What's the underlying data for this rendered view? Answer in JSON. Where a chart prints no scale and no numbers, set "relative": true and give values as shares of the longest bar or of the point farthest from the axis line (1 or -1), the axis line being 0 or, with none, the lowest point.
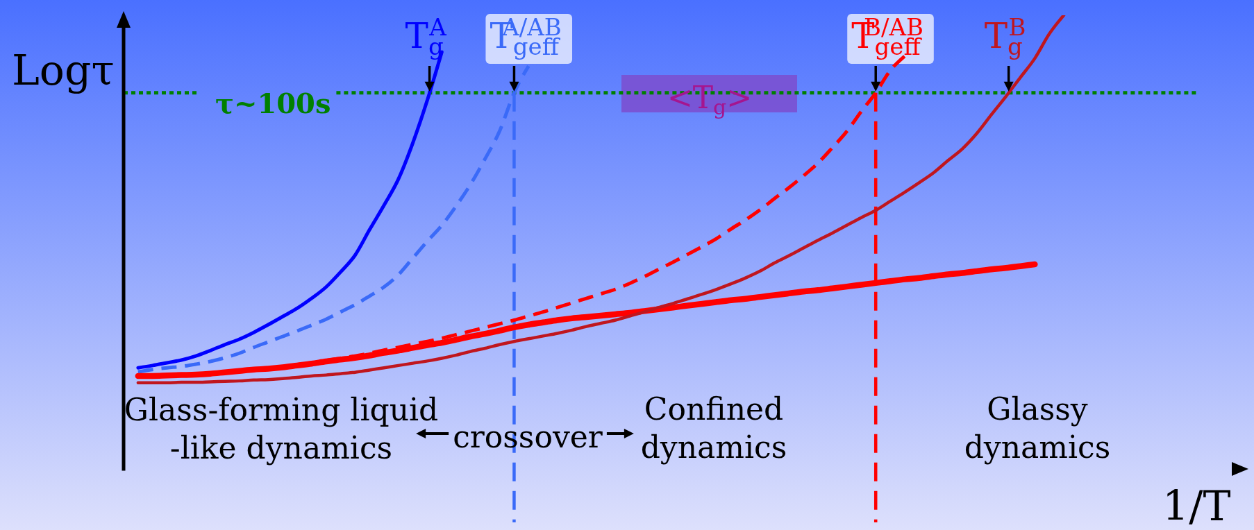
{
  "chart_data": {
    "type": "line",
    "relative": true,
    "xlabel": "1/T",
    "ylabel": "Logτ",
    "categories": [
      null,
      null,
      null,
      null,
      null,
      null,
      null,
      null,
      null,
      null,
      null,
      null,
      null,
      null,
      null,
      null,
      null,
      null,
      null,
      null,
      null,
      null,
      null,
      null,
      null,
      null,
      null,
      null,
      null,
      null,
      null,
      null,
      null,
      null,
      null,
      null,
      null,
      null,
      null,
      null,
      null,
      null,
      null,
      null,
      null,
      null,
      null,
      null,
      null,
      null,
      null,
      null,
      null,
      null,
      null,
      null,
      null,
      null,
      null,
      null,
      null,
      null,
      null,
      null,
      null,
      null,
      null,
      null,
      null,
      null,
      null,
      null,
      null,
      null,
      null,
      null,
      null,
      null
    ],
    "series": [
      {
        "name": "T$_{g}$$^{A}$",
        "color": "#0000ff",
        "line_style": "solid",
        "values": [
          null,
          0.223,
          0.228,
          0.234,
          0.24,
          0.249,
          0.261,
          0.274,
          0.286,
          0.301,
          0.318,
          0.336,
          0.354,
          0.376,
          0.401,
          0.434,
          0.471,
          0.527,
          0.581,
          0.639,
          0.719,
          0.813,
          0.919,
          null,
          null,
          null,
          null,
          null,
          null,
          null,
          null,
          null,
          null,
          null,
          null,
          null,
          null,
          null,
          null,
          null,
          null,
          null,
          null,
          null,
          null,
          null,
          null,
          null,
          null,
          null,
          null,
          null,
          null,
          null,
          null,
          null,
          null,
          null,
          null,
          null,
          null,
          null,
          null,
          null,
          null,
          null,
          null,
          null,
          null,
          null,
          null,
          null,
          null,
          null,
          null,
          null,
          null,
          null
        ]
      },
      {
        "name": "T$_{geff}$$^{A/AB}$",
        "color": "#3a6af8",
        "line_style": "dashed",
        "values": [
          null,
          0.214,
          0.219,
          0.223,
          0.226,
          0.231,
          0.237,
          0.245,
          0.255,
          0.268,
          0.28,
          0.292,
          0.304,
          0.317,
          0.33,
          0.346,
          0.362,
          0.381,
          0.401,
          0.428,
          0.465,
          0.502,
          0.537,
          0.58,
          0.628,
          0.684,
          0.745,
          0.829,
          0.888,
          null,
          null,
          null,
          null,
          null,
          null,
          null,
          null,
          null,
          null,
          null,
          null,
          null,
          null,
          null,
          null,
          null,
          null,
          null,
          null,
          null,
          null,
          null,
          null,
          null,
          null,
          null,
          null,
          null,
          null,
          null,
          null,
          null,
          null,
          null,
          null,
          null,
          null,
          null,
          null,
          null,
          null,
          null,
          null,
          null,
          null,
          null,
          null,
          null
        ]
      },
      {
        "color": "#ff0000",
        "line_style": "solid",
        "values": [
          null,
          0.205,
          0.205,
          0.206,
          0.207,
          0.208,
          0.21,
          0.213,
          0.216,
          0.219,
          0.221,
          0.224,
          0.228,
          0.232,
          0.237,
          0.241,
          0.245,
          0.25,
          0.256,
          0.261,
          0.267,
          0.273,
          0.278,
          0.285,
          0.292,
          0.298,
          0.305,
          0.312,
          0.318,
          0.323,
          0.328,
          0.332,
          0.335,
          0.338,
          0.341,
          0.344,
          0.348,
          0.352,
          0.356,
          0.36,
          0.364,
          0.368,
          0.372,
          0.375,
          0.379,
          0.383,
          0.387,
          0.391,
          0.394,
          0.398,
          0.402,
          0.406,
          0.41,
          0.414,
          0.418,
          0.421,
          0.425,
          0.429,
          0.432,
          0.436,
          0.44,
          0.443,
          0.447,
          0.451,
          null,
          null,
          null,
          null,
          null,
          null,
          null,
          null,
          null,
          null,
          null,
          null,
          null,
          null
        ]
      },
      {
        "name": "T$_{geff}$$^{B/AB}$",
        "color": "#ff0000",
        "line_style": "dashed",
        "values": [
          null,
          0.205,
          0.205,
          0.206,
          0.207,
          0.208,
          0.21,
          0.213,
          0.216,
          0.219,
          0.221,
          0.224,
          0.228,
          0.233,
          0.239,
          0.244,
          0.249,
          0.255,
          0.262,
          0.268,
          0.275,
          0.281,
          0.288,
          0.296,
          0.304,
          0.312,
          0.32,
          0.328,
          0.337,
          0.346,
          0.356,
          0.366,
          0.376,
          0.386,
          0.396,
          0.409,
          0.424,
          0.44,
          0.456,
          0.473,
          0.49,
          0.508,
          0.529,
          0.549,
          0.571,
          0.596,
          0.62,
          0.646,
          0.674,
          0.708,
          0.744,
          0.788,
          0.829,
          0.878,
          0.91,
          null,
          null,
          null,
          null,
          null,
          null,
          null,
          null,
          null,
          null,
          null,
          null,
          null,
          null,
          null,
          null,
          null,
          null,
          null,
          null,
          null,
          null,
          null
        ]
      },
      {
        "name": "T$_{g}$$^{B}$",
        "color": "#c0161e",
        "line_style": "solid",
        "values": [
          null,
          0.19,
          0.19,
          0.19,
          0.191,
          0.191,
          0.192,
          0.193,
          0.194,
          0.196,
          0.197,
          0.199,
          0.202,
          0.205,
          0.207,
          0.21,
          0.213,
          0.218,
          0.223,
          0.228,
          0.233,
          0.238,
          0.244,
          0.251,
          0.259,
          0.266,
          0.274,
          0.281,
          0.287,
          0.293,
          0.299,
          0.306,
          0.314,
          0.321,
          0.328,
          0.337,
          0.346,
          0.356,
          0.365,
          0.375,
          0.385,
          0.396,
          0.408,
          0.421,
          0.436,
          0.454,
          0.47,
          0.487,
          0.504,
          0.52,
          0.537,
          0.554,
          0.57,
          0.59,
          0.61,
          0.631,
          0.653,
          0.68,
          0.706,
          0.74,
          0.781,
          0.821,
          0.863,
          0.905,
          0.959,
          1.0,
          null,
          null,
          null,
          null,
          null,
          null,
          null,
          null,
          null,
          null,
          null,
          null
        ]
      }
    ],
    "ref_lines": [
      {
        "axis": "y",
        "value": 0.829,
        "label": "τ~100s",
        "color": "#008000",
        "line_style": "dotted"
      }
    ],
    "annotations": [
      "<T$_{g}$>",
      "Glass-forming liquid\n-like dynamics",
      "crossover",
      "Confined\ndynamics",
      "Glassy\ndynamics"
    ]
  }
}
